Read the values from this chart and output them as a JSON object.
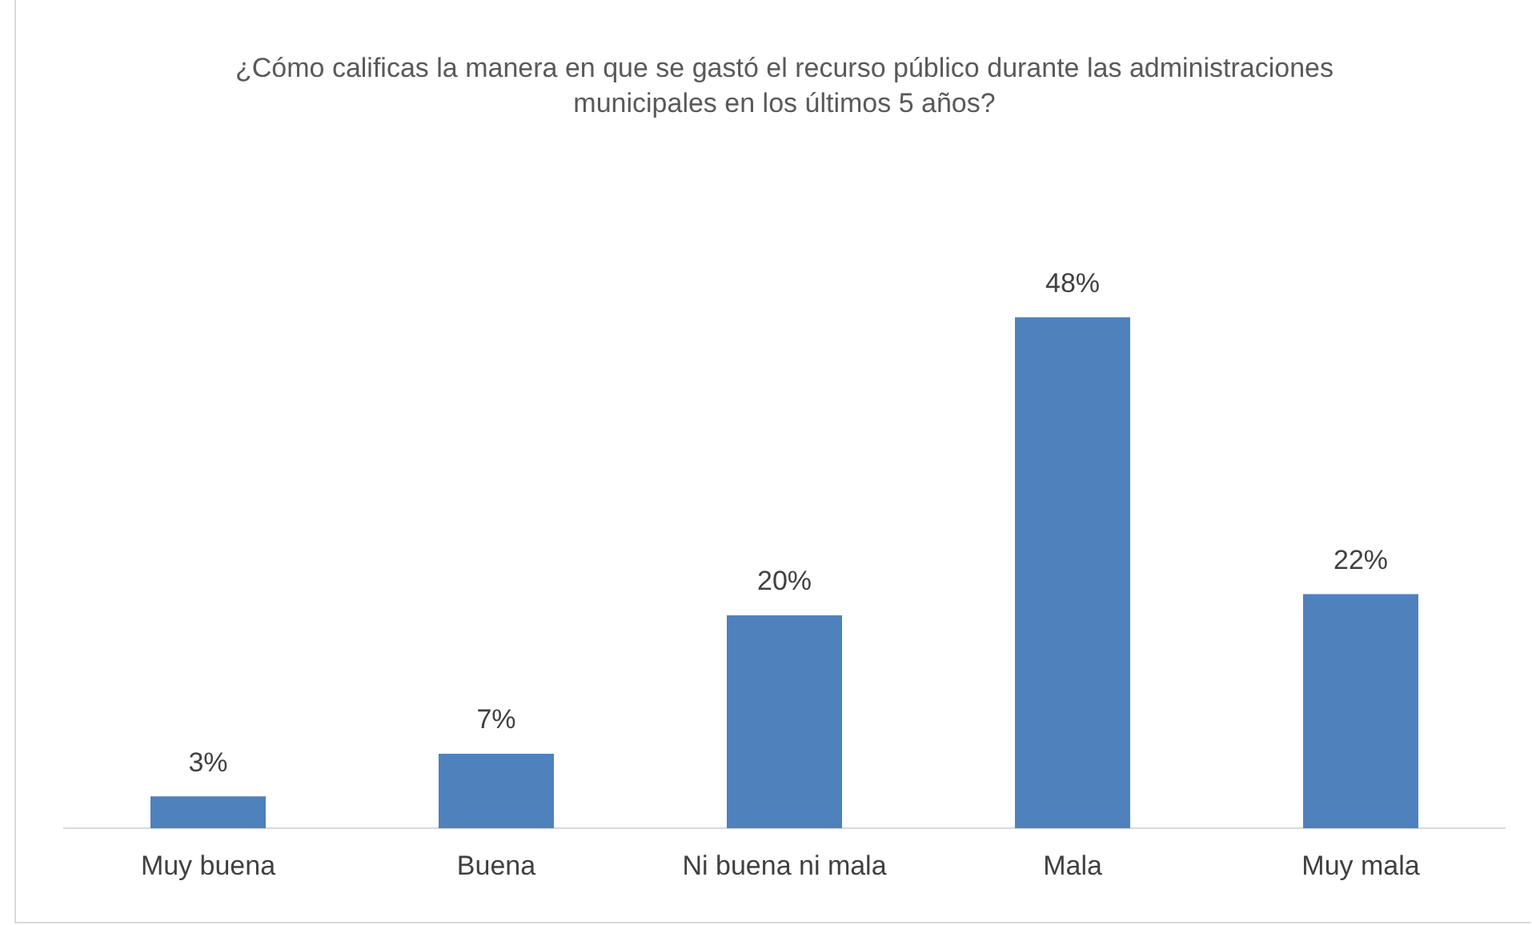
{
  "chart_data": {
    "type": "bar",
    "title": "¿Cómo calificas la manera en que se gastó el recurso público durante las administraciones municipales en los últimos 5 años?",
    "categories": [
      "Muy buena",
      "Buena",
      "Ni buena ni mala",
      "Mala",
      "Muy mala"
    ],
    "values": [
      3,
      7,
      20,
      48,
      22
    ],
    "value_labels": [
      "3%",
      "7%",
      "20%",
      "48%",
      "22%"
    ],
    "color": "#4f81bd",
    "grid": false,
    "legend": false
  }
}
